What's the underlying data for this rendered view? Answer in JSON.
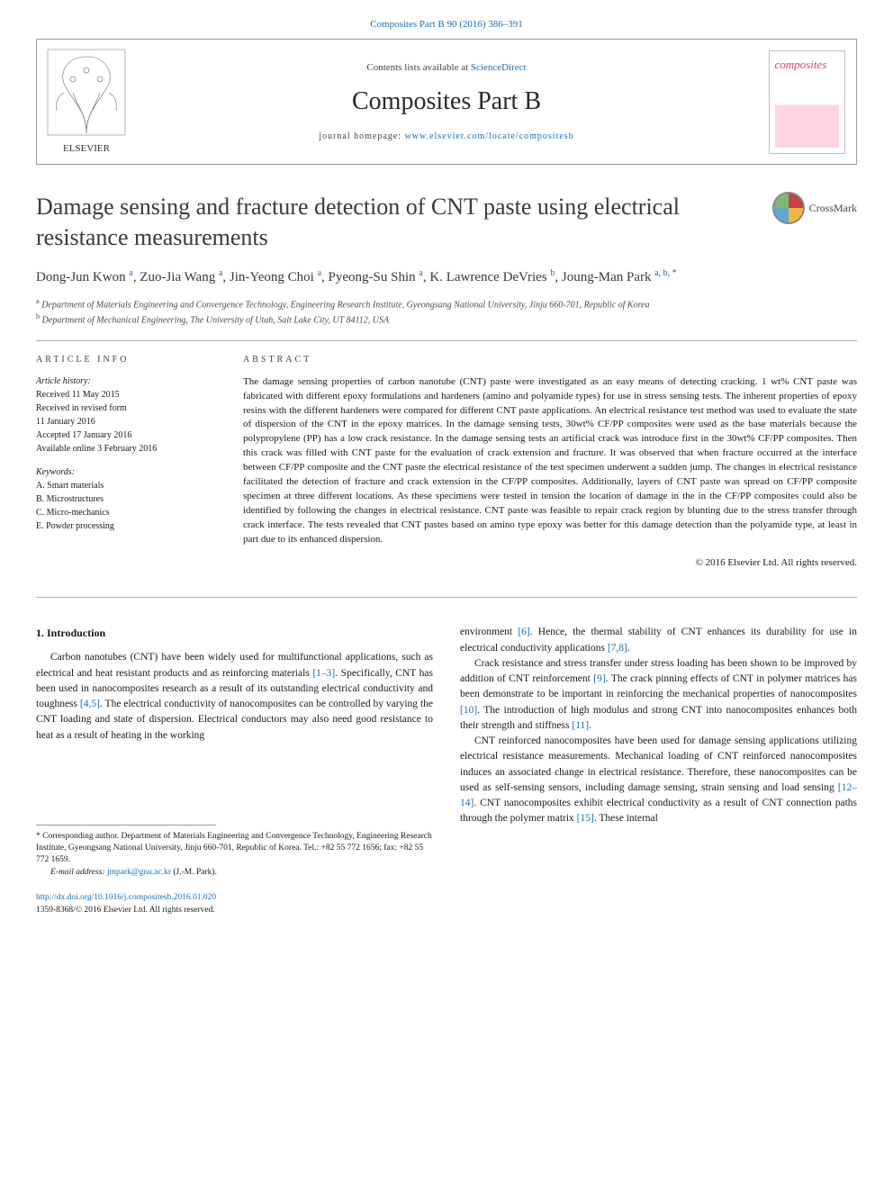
{
  "header": {
    "top_link": "Composites Part B 90 (2016) 386–391",
    "contents_prefix": "Contents lists available at ",
    "contents_link": "ScienceDirect",
    "journal_title": "Composites Part B",
    "homepage_prefix": "journal homepage: ",
    "homepage_url": "www.elsevier.com/locate/compositesb",
    "publisher_name": "ELSEVIER",
    "cover_title": "composites"
  },
  "crossmark_label": "CrossMark",
  "article": {
    "title": "Damage sensing and fracture detection of CNT paste using electrical resistance measurements",
    "authors_html": "Dong-Jun Kwon <sup>a</sup>, Zuo-Jia Wang <sup>a</sup>, Jin-Yeong Choi <sup>a</sup>, Pyeong-Su Shin <sup>a</sup>, K. Lawrence DeVries <sup>b</sup>, Joung-Man Park <sup>a, b, *</sup>",
    "affiliations": [
      "a Department of Materials Engineering and Convergence Technology, Engineering Research Institute, Gyeongsang National University, Jinju 660-701, Republic of Korea",
      "b Department of Mechanical Engineering, The University of Utah, Salt Lake City, UT 84112, USA"
    ]
  },
  "article_info": {
    "heading": "ARTICLE INFO",
    "history_label": "Article history:",
    "history": [
      "Received 11 May 2015",
      "Received in revised form",
      "11 January 2016",
      "Accepted 17 January 2016",
      "Available online 3 February 2016"
    ],
    "keywords_label": "Keywords:",
    "keywords": [
      "A. Smart materials",
      "B. Microstructures",
      "C. Micro-mechanics",
      "E. Powder processing"
    ]
  },
  "abstract": {
    "heading": "ABSTRACT",
    "text": "The damage sensing properties of carbon nanotube (CNT) paste were investigated as an easy means of detecting cracking. 1 wt% CNT paste was fabricated with different epoxy formulations and hardeners (amino and polyamide types) for use in stress sensing tests. The inherent properties of epoxy resins with the different hardeners were compared for different CNT paste applications. An electrical resistance test method was used to evaluate the state of dispersion of the CNT in the epoxy matrices. In the damage sensing tests, 30wt% CF/PP composites were used as the base materials because the polypropylene (PP) has a low crack resistance. In the damage sensing tests an artificial crack was introduce first in the 30wt% CF/PP composites. Then this crack was filled with CNT paste for the evaluation of crack extension and fracture. It was observed that when fracture occurred at the interface between CF/PP composite and the CNT paste the electrical resistance of the test specimen underwent a sudden jump. The changes in electrical resistance facilitated the detection of fracture and crack extension in the CF/PP composites. Additionally, layers of CNT paste was spread on CF/PP composite specimen at three different locations. As these specimens were tested in tension the location of damage in the in the CF/PP composites could also be identified by following the changes in electrical resistance. CNT paste was feasible to repair crack region by blunting due to the stress transfer through crack interface. The tests revealed that CNT pastes based on amino type epoxy was better for this damage detection than the polyamide type, at least in part due to its enhanced dispersion.",
    "copyright": "© 2016 Elsevier Ltd. All rights reserved."
  },
  "body": {
    "section_heading": "1. Introduction",
    "left_paragraphs": [
      "Carbon nanotubes (CNT) have been widely used for multifunctional applications, such as electrical and heat resistant products and as reinforcing materials [1–3]. Specifically, CNT has been used in nanocomposites research as a result of its outstanding electrical conductivity and toughness [4,5]. The electrical conductivity of nanocomposites can be controlled by varying the CNT loading and state of dispersion. Electrical conductors may also need good resistance to heat as a result of heating in the working"
    ],
    "right_paragraphs": [
      "environment [6]. Hence, the thermal stability of CNT enhances its durability for use in electrical conductivity applications [7,8].",
      "Crack resistance and stress transfer under stress loading has been shown to be improved by addition of CNT reinforcement [9]. The crack pinning effects of CNT in polymer matrices has been demonstrate to be important in reinforcing the mechanical properties of nanocomposites [10]. The introduction of high modulus and strong CNT into nanocomposites enhances both their strength and stiffness [11].",
      "CNT reinforced nanocomposites have been used for damage sensing applications utilizing electrical resistance measurements. Mechanical loading of CNT reinforced nanocomposites induces an associated change in electrical resistance. Therefore, these nanocomposites can be used as self-sensing sensors, including damage sensing, strain sensing and load sensing [12–14]. CNT nanocomposites exhibit electrical conductivity as a result of CNT connection paths through the polymer matrix [15]. These internal"
    ],
    "refs": {
      "r1": "[1–3]",
      "r2": "[4,5]",
      "r3": "[6]",
      "r4": "[7,8]",
      "r5": "[9]",
      "r6": "[10]",
      "r7": "[11]",
      "r8": "[12–14]",
      "r9": "[15]"
    }
  },
  "footnote": {
    "text": "* Corresponding author. Department of Materials Engineering and Convergence Technology, Engineering Research Institute, Gyeongsang National University, Jinju 660-701, Republic of Korea. Tel.: +82 55 772 1656; fax: +82 55 772 1659.",
    "email_label": "E-mail address: ",
    "email": "jmpark@gnu.ac.kr",
    "email_suffix": " (J.-M. Park)."
  },
  "doi": {
    "url": "http://dx.doi.org/10.1016/j.compositesb.2016.01.020",
    "issn_line": "1359-8368/© 2016 Elsevier Ltd. All rights reserved."
  },
  "colors": {
    "link": "#1a6fb7",
    "text": "#1a1a1a",
    "border": "#9a9a9a",
    "cover_accent": "#d4447a"
  }
}
